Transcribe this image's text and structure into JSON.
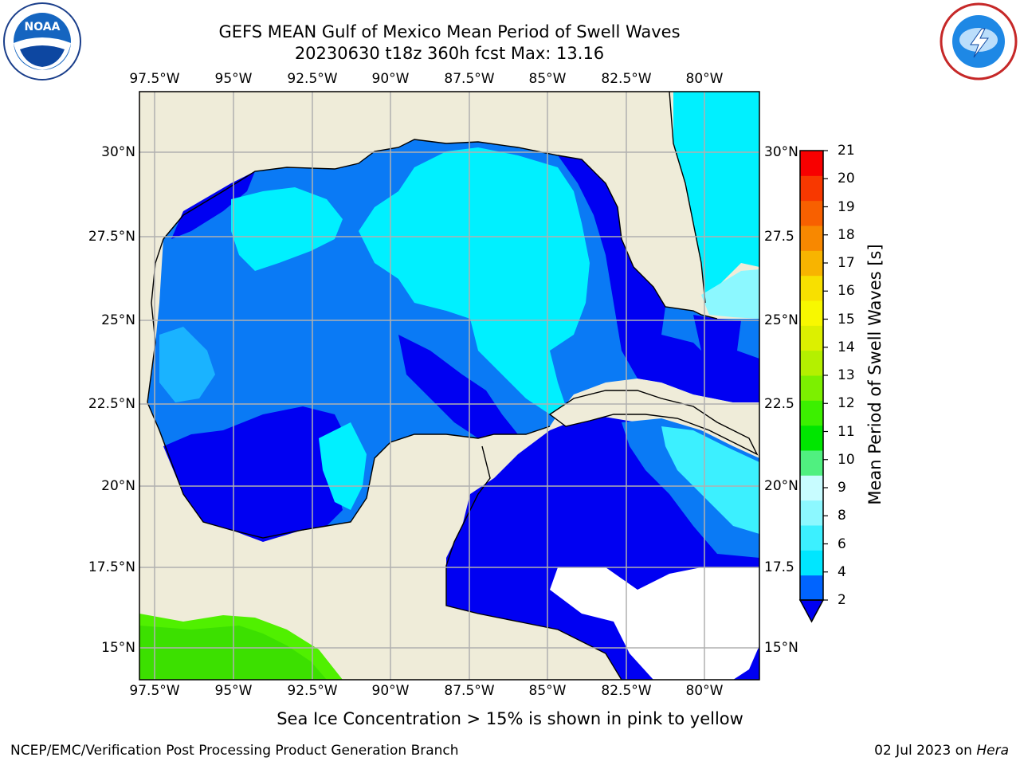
{
  "header": {
    "title_line1": "GEFS MEAN Gulf of Mexico Mean Period of Swell Waves",
    "title_line2": "20230630 t18z 360h fcst   Max: 13.16"
  },
  "axes": {
    "lon_ticks": [
      "97.5°W",
      "95°W",
      "92.5°W",
      "90°W",
      "87.5°W",
      "85°W",
      "82.5°W",
      "80°W"
    ],
    "lat_ticks": [
      "30°N",
      "27.5°N",
      "25°N",
      "22.5°N",
      "20°N",
      "17.5°N",
      "15°N"
    ],
    "lat_ticks_right": [
      "30°N",
      "27.5",
      "25°N",
      "22.5",
      "20°N",
      "17.5",
      "15°N"
    ]
  },
  "colorbar": {
    "title": "Mean Period of Swell Waves [s]",
    "ticks": [
      "21",
      "20",
      "19",
      "18",
      "17",
      "16",
      "15",
      "14",
      "13",
      "12",
      "11",
      "10",
      "9",
      "8",
      "6",
      "4",
      "2"
    ],
    "colors": [
      "#0064ff",
      "#00e6ff",
      "#3cf0ff",
      "#8cf8ff",
      "#c8fcff",
      "#50f080",
      "#00e600",
      "#3cf000",
      "#7cf000",
      "#b4f000",
      "#dcf000",
      "#f8f800",
      "#f8e000",
      "#f8b400",
      "#f88800",
      "#f86000",
      "#f83800",
      "#f80000"
    ]
  },
  "caption": "Sea Ice Concentration > 15% is shown in pink to yellow",
  "footer": {
    "left": "NCEP/EMC/Verification Post Processing Product Generation Branch",
    "right_date": "02 Jul 2023 on ",
    "right_host": "Hera"
  },
  "logos": {
    "left": "noaa-logo",
    "right": "nws-logo"
  }
}
